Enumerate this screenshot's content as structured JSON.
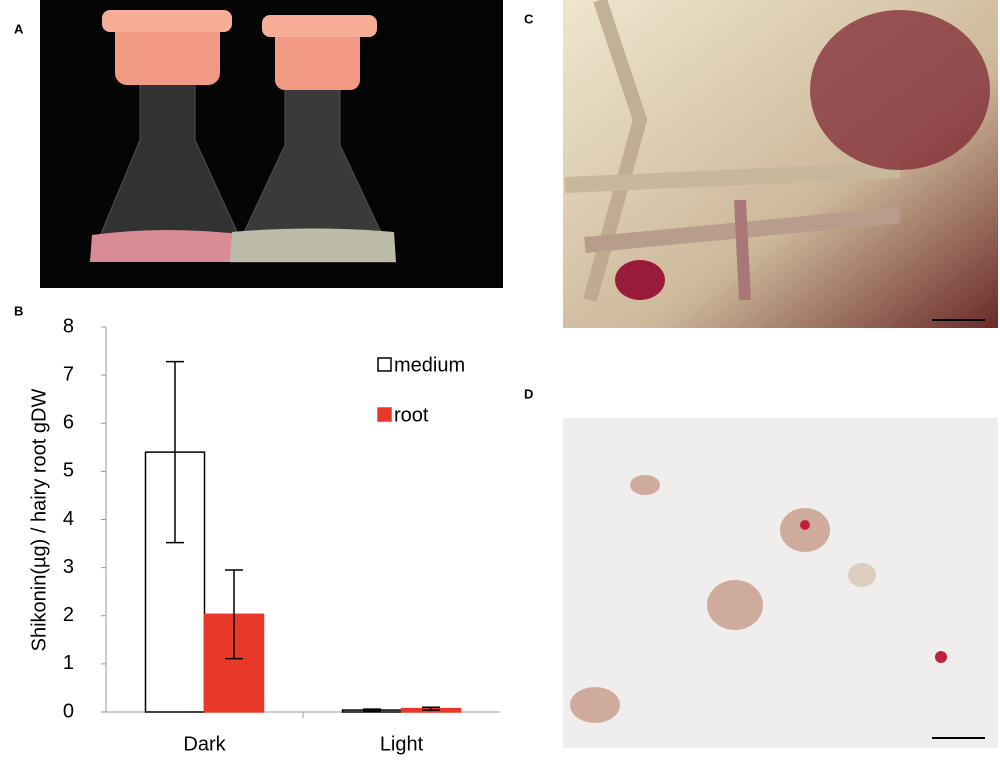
{
  "panel_labels": [
    "A",
    "B",
    "C",
    "D"
  ],
  "chart_data": {
    "type": "bar",
    "y_label": "Shikonin(µg) / hairy root gDW",
    "categories": [
      "Dark",
      "Light"
    ],
    "series": [
      {
        "name": "medium",
        "color": "#ffffff",
        "edgecolor": "#000000",
        "values": [
          5.4,
          0.04
        ],
        "errors": [
          1.88,
          0.02
        ]
      },
      {
        "name": "root",
        "color": "#e8382a",
        "edgecolor": "#e8382a",
        "values": [
          2.03,
          0.07
        ],
        "errors": [
          0.92,
          0.03
        ]
      }
    ],
    "ylim": [
      0,
      8
    ],
    "yticks": [
      0,
      1,
      2,
      3,
      4,
      5,
      6,
      7,
      8
    ],
    "grid": false
  }
}
